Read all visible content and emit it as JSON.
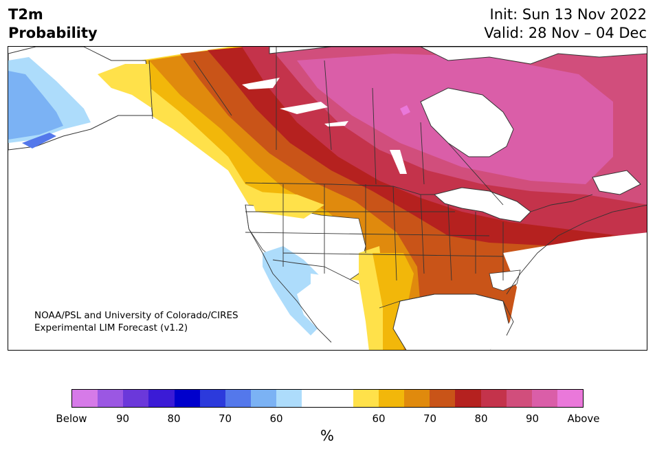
{
  "header": {
    "variable": "T2m",
    "product": "Probability",
    "init": "Init: Sun 13 Nov 2022",
    "valid": "Valid: 28 Nov – 04 Dec"
  },
  "map": {
    "region": "North America",
    "credit_line1": "NOAA/PSL and University of Colorado/CIRES",
    "credit_line2": "Experimental LIM Forecast (v1.2)"
  },
  "colorbar": {
    "unit": "%",
    "segments": [
      {
        "category": "below",
        "range": "below-95",
        "color": "#d67ae8"
      },
      {
        "category": "below",
        "range": "90-95",
        "color": "#9b57e3"
      },
      {
        "category": "below",
        "range": "85-90",
        "color": "#6b38da"
      },
      {
        "category": "below",
        "range": "80-85",
        "color": "#3b1bd6"
      },
      {
        "category": "below",
        "range": "75-80",
        "color": "#0000cc"
      },
      {
        "category": "below",
        "range": "70-75",
        "color": "#2c3adc"
      },
      {
        "category": "below",
        "range": "65-70",
        "color": "#5478eb"
      },
      {
        "category": "below",
        "range": "60-65",
        "color": "#7bb2f4"
      },
      {
        "category": "below",
        "range": "55-60",
        "color": "#addcfb"
      },
      {
        "category": "neutral",
        "range": "",
        "color": "#ffffff"
      },
      {
        "category": "neutral",
        "range": "",
        "color": "#ffffff"
      },
      {
        "category": "above",
        "range": "55-60",
        "color": "#ffe14a"
      },
      {
        "category": "above",
        "range": "60-65",
        "color": "#f2b70a"
      },
      {
        "category": "above",
        "range": "65-70",
        "color": "#e08a0d"
      },
      {
        "category": "above",
        "range": "70-75",
        "color": "#c95418"
      },
      {
        "category": "above",
        "range": "75-80",
        "color": "#b5211f"
      },
      {
        "category": "above",
        "range": "80-85",
        "color": "#c4334b"
      },
      {
        "category": "above",
        "range": "85-90",
        "color": "#d14e7c"
      },
      {
        "category": "above",
        "range": "90-95",
        "color": "#da5ea8"
      },
      {
        "category": "above",
        "range": "above-95",
        "color": "#ea78da"
      }
    ],
    "ticks": [
      "Below",
      "90",
      "80",
      "70",
      "60",
      "60",
      "70",
      "80",
      "90",
      "Above"
    ]
  }
}
